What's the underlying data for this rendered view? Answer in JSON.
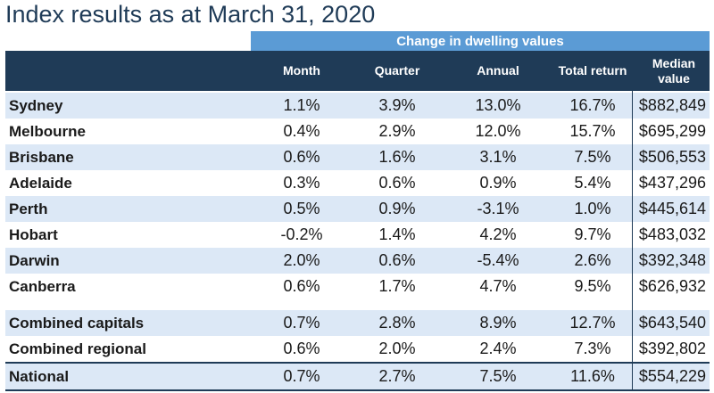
{
  "title": "Index results as at March 31, 2020",
  "group_header": "Change in dwelling values",
  "columns": {
    "month": "Month",
    "quarter": "Quarter",
    "annual": "Annual",
    "total_return": "Total return",
    "median_value": "Median\nvalue"
  },
  "rows": [
    {
      "name": "Sydney",
      "month": "1.1%",
      "quarter": "3.9%",
      "annual": "13.0%",
      "total": "16.7%",
      "median": "$882,849"
    },
    {
      "name": "Melbourne",
      "month": "0.4%",
      "quarter": "2.9%",
      "annual": "12.0%",
      "total": "15.7%",
      "median": "$695,299"
    },
    {
      "name": "Brisbane",
      "month": "0.6%",
      "quarter": "1.6%",
      "annual": "3.1%",
      "total": "7.5%",
      "median": "$506,553"
    },
    {
      "name": "Adelaide",
      "month": "0.3%",
      "quarter": "0.6%",
      "annual": "0.9%",
      "total": "5.4%",
      "median": "$437,296"
    },
    {
      "name": "Perth",
      "month": "0.5%",
      "quarter": "0.9%",
      "annual": "-3.1%",
      "total": "1.0%",
      "median": "$445,614"
    },
    {
      "name": "Hobart",
      "month": "-0.2%",
      "quarter": "1.4%",
      "annual": "4.2%",
      "total": "9.7%",
      "median": "$483,032"
    },
    {
      "name": "Darwin",
      "month": "2.0%",
      "quarter": "0.6%",
      "annual": "-5.4%",
      "total": "2.6%",
      "median": "$392,348"
    },
    {
      "name": "Canberra",
      "month": "0.6%",
      "quarter": "1.7%",
      "annual": "4.7%",
      "total": "9.5%",
      "median": "$626,932"
    },
    {
      "name": "Combined capitals",
      "month": "0.7%",
      "quarter": "2.8%",
      "annual": "8.9%",
      "total": "12.7%",
      "median": "$643,540"
    },
    {
      "name": "Combined regional",
      "month": "0.6%",
      "quarter": "2.0%",
      "annual": "2.4%",
      "total": "7.3%",
      "median": "$392,802"
    },
    {
      "name": "National",
      "month": "0.7%",
      "quarter": "2.7%",
      "annual": "7.5%",
      "total": "11.6%",
      "median": "$554,229"
    }
  ],
  "colors": {
    "header_dark": "#1f3b57",
    "header_accent": "#5b9bd5",
    "row_shade": "#dce8f6"
  }
}
